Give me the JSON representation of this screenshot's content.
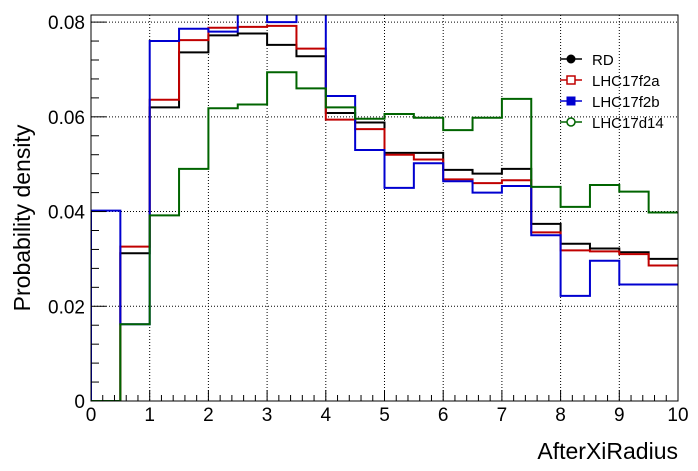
{
  "chart_data": {
    "type": "line",
    "style": "step-histogram",
    "xlabel": "AfterXiRadius",
    "ylabel": "Probability density",
    "xlim": [
      0,
      10
    ],
    "ylim": [
      0,
      0.0815
    ],
    "x_ticks": [
      0,
      1,
      2,
      3,
      4,
      5,
      6,
      7,
      8,
      9,
      10
    ],
    "x_tick_labels": [
      "0",
      "1",
      "2",
      "3",
      "4",
      "5",
      "6",
      "7",
      "8",
      "9",
      "10"
    ],
    "y_ticks": [
      0,
      0.02,
      0.04,
      0.06,
      0.08
    ],
    "y_tick_labels": [
      "0",
      "0.02",
      "0.04",
      "0.06",
      "0.08"
    ],
    "grid": true,
    "legend_position": "top-right",
    "bin_edges": [
      0,
      0.5,
      1,
      1.5,
      2,
      2.5,
      3,
      3.5,
      4,
      4.5,
      5,
      5.5,
      6,
      6.5,
      7,
      7.5,
      8,
      8.5,
      9,
      9.5,
      10
    ],
    "series": [
      {
        "name": "RD",
        "color": "#000000",
        "marker": "filled-circle",
        "values": [
          0,
          0.0312,
          0.062,
          0.0736,
          0.0772,
          0.0776,
          0.0752,
          0.0728,
          0.0608,
          0.0588,
          0.0524,
          0.0524,
          0.0488,
          0.048,
          0.049,
          0.0374,
          0.0332,
          0.0322,
          0.0314,
          0.03
        ]
      },
      {
        "name": "LHC17f2a",
        "color": "#c00000",
        "marker": "open-square",
        "values": [
          0,
          0.0326,
          0.0636,
          0.0762,
          0.0788,
          0.079,
          0.0792,
          0.0744,
          0.0594,
          0.0574,
          0.052,
          0.051,
          0.0468,
          0.046,
          0.0466,
          0.0356,
          0.0318,
          0.0316,
          0.031,
          0.0286
        ]
      },
      {
        "name": "LHC17f2b",
        "color": "#0000d0",
        "marker": "filled-square",
        "values": [
          0.0402,
          0.0162,
          0.076,
          0.0786,
          0.078,
          0.086,
          0.08,
          0.086,
          0.0644,
          0.053,
          0.045,
          0.0502,
          0.0464,
          0.044,
          0.0454,
          0.035,
          0.0222,
          0.0296,
          0.0246,
          0.0246
        ]
      },
      {
        "name": "LHC17d14",
        "color": "#006400",
        "marker": "open-circle",
        "values": [
          0,
          0.0162,
          0.0392,
          0.049,
          0.0618,
          0.0626,
          0.0694,
          0.066,
          0.062,
          0.0596,
          0.0606,
          0.0598,
          0.0572,
          0.0598,
          0.0638,
          0.0452,
          0.041,
          0.0456,
          0.0442,
          0.0398
        ]
      }
    ]
  }
}
